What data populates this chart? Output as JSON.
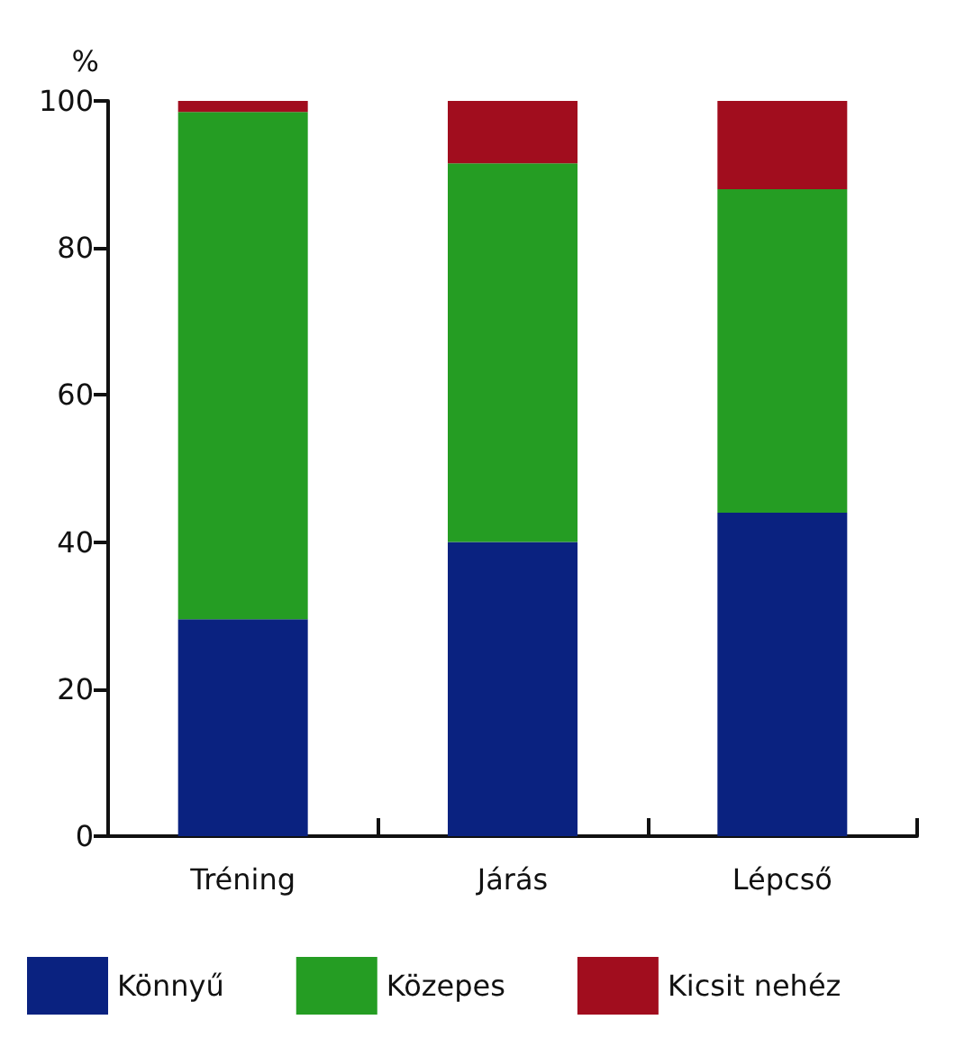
{
  "chart_data": {
    "type": "bar",
    "stacked": true,
    "ylabel": "%",
    "categories": [
      "Tréning",
      "Járás",
      "Lépcső"
    ],
    "series": [
      {
        "name": "Könnyű",
        "color": "#0a2280",
        "values": [
          29.5,
          40,
          44
        ]
      },
      {
        "name": "Közepes",
        "color": "#259d23",
        "values": [
          69,
          51.5,
          44
        ]
      },
      {
        "name": "Kicsit nehéz",
        "color": "#a10d1e",
        "values": [
          1.5,
          8.5,
          12
        ]
      }
    ],
    "ylim": [
      0,
      100
    ],
    "yticks": [
      0,
      20,
      40,
      60,
      80,
      100
    ],
    "grid": false,
    "legend": "bottom"
  }
}
